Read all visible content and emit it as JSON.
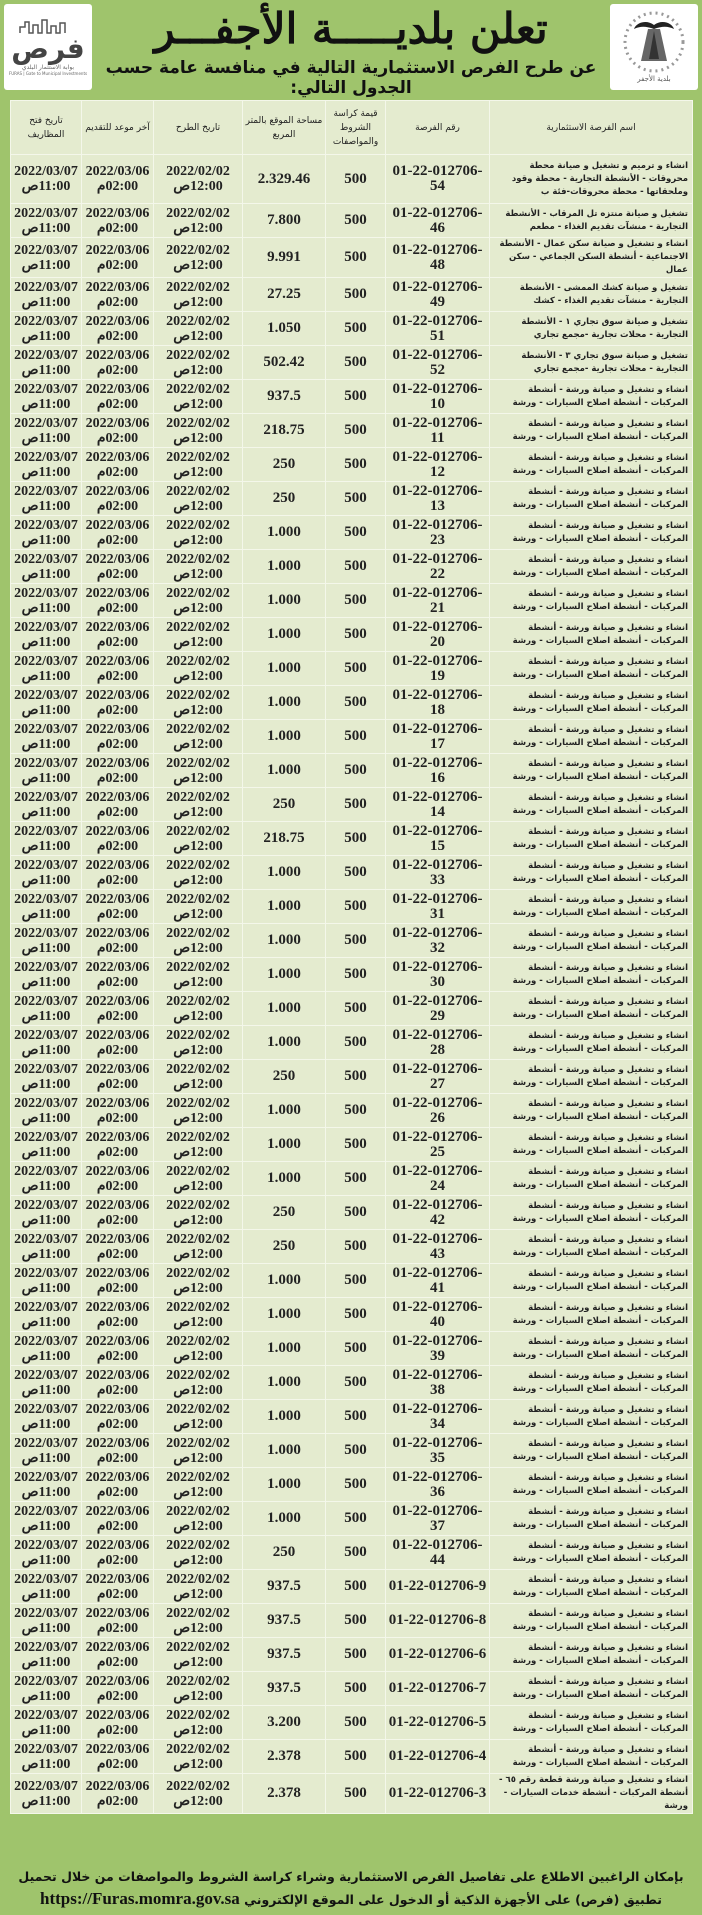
{
  "header": {
    "title": "تعلن بلديـــــة الأجفـــر",
    "subtitle": "عن طرح الفرص الاستثمارية التالية في منافسة عامة حسب الجدول التالي:",
    "furas_logo": {
      "word": "فرص",
      "tagline": "بوابة الاستثمار البلدي",
      "tagline_en": "FURAS | Gate to Municipal Investments"
    },
    "municipality_logo": {
      "text": "بلدية الأجفر"
    }
  },
  "colors": {
    "background": "#9fc46c",
    "cell": "#e4ebcf"
  },
  "table": {
    "headers": [
      "اسم الفرصة الاستثمارية",
      "رقم الفرصة",
      "قيمة كراسة الشروط والمواصفات",
      "مساحة الموقع بالمتر المربع",
      "تاريخ الطرح",
      "آخر موعد للتقديم",
      "تاريخ فتح المظاريف"
    ],
    "offer_date": "2022/02/02\n12:00ص",
    "deadline": "2022/03/06\n02:00م",
    "opening": "2022/03/07\n11:00ص",
    "fee": "500",
    "rows": [
      {
        "name": "انشاء و ترميم و تشغيل و صيانة محطة محروقات - الأنشطة التجارية - محطة وقود وملحقاتها - محطة محروقات-فئة ب",
        "id": "01-22-012706-54",
        "area": "2.329.46"
      },
      {
        "name": "تشغيل و صيانة منتزه تل المرقاب - الأنشطة التجارية - منشآت تقديم الغذاء - مطعم",
        "id": "01-22-012706-46",
        "area": "7.800"
      },
      {
        "name": "انشاء و تشغيل و صيانة سكن عمال - الأنشطة الاجتماعية - أنشطة السكن الجماعي - سكن عمال",
        "id": "01-22-012706-48",
        "area": "9.991"
      },
      {
        "name": "تشغيل و صيانة كشك الممشى - الأنشطة التجارية - منشآت تقديم الغذاء - كشك",
        "id": "01-22-012706-49",
        "area": "27.25"
      },
      {
        "name": "تشغيل و صيانة سوق تجاري ١ - الأنشطة التجارية - محلات تجارية -مجمع تجاري",
        "id": "01-22-012706-51",
        "area": "1.050"
      },
      {
        "name": "تشغيل و صيانة سوق تجاري ٣ - الأنشطة التجارية - محلات تجارية -مجمع تجاري",
        "id": "01-22-012706-52",
        "area": "502.42"
      },
      {
        "name": "انشاء و تشغيل و صيانة ورشة - أنشطة المركبات - أنشطة اصلاح السيارات - ورشة",
        "id": "01-22-012706-10",
        "area": "937.5"
      },
      {
        "name": "انشاء و تشغيل و صيانة ورشة - أنشطة المركبات - أنشطة اصلاح السيارات - ورشة",
        "id": "01-22-012706-11",
        "area": "218.75"
      },
      {
        "name": "انشاء و تشغيل و صيانة ورشة - أنشطة المركبات - أنشطة اصلاح السيارات - ورشة",
        "id": "01-22-012706-12",
        "area": "250"
      },
      {
        "name": "انشاء و تشغيل و صيانة ورشة - أنشطة المركبات - أنشطة اصلاح السيارات - ورشة",
        "id": "01-22-012706-13",
        "area": "250"
      },
      {
        "name": "انشاء و تشغيل و صيانة ورشة - أنشطة المركبات - أنشطة اصلاح السيارات - ورشة",
        "id": "01-22-012706-23",
        "area": "1.000"
      },
      {
        "name": "انشاء و تشغيل و صيانة ورشة - أنشطة المركبات - أنشطة اصلاح السيارات - ورشة",
        "id": "01-22-012706-22",
        "area": "1.000"
      },
      {
        "name": "انشاء و تشغيل و صيانة ورشة - أنشطة المركبات - أنشطة اصلاح السيارات - ورشة",
        "id": "01-22-012706-21",
        "area": "1.000"
      },
      {
        "name": "انشاء و تشغيل و صيانة ورشة - أنشطة المركبات - أنشطة اصلاح السيارات - ورشة",
        "id": "01-22-012706-20",
        "area": "1.000"
      },
      {
        "name": "انشاء و تشغيل و صيانة ورشة - أنشطة المركبات - أنشطة اصلاح السيارات - ورشة",
        "id": "01-22-012706-19",
        "area": "1.000"
      },
      {
        "name": "انشاء و تشغيل و صيانة ورشة - أنشطة المركبات - أنشطة اصلاح السيارات - ورشة",
        "id": "01-22-012706-18",
        "area": "1.000"
      },
      {
        "name": "انشاء و تشغيل و صيانة ورشة - أنشطة المركبات - أنشطة اصلاح السيارات - ورشة",
        "id": "01-22-012706-17",
        "area": "1.000"
      },
      {
        "name": "انشاء و تشغيل و صيانة ورشة - أنشطة المركبات - أنشطة اصلاح السيارات - ورشة",
        "id": "01-22-012706-16",
        "area": "1.000"
      },
      {
        "name": "انشاء و تشغيل و صيانة ورشة - أنشطة المركبات - أنشطة اصلاح السيارات - ورشة",
        "id": "01-22-012706-14",
        "area": "250"
      },
      {
        "name": "انشاء و تشغيل و صيانة ورشة - أنشطة المركبات - أنشطة اصلاح السيارات - ورشة",
        "id": "01-22-012706-15",
        "area": "218.75"
      },
      {
        "name": "انشاء و تشغيل و صيانة ورشة - أنشطة المركبات - أنشطة اصلاح السيارات - ورشة",
        "id": "01-22-012706-33",
        "area": "1.000"
      },
      {
        "name": "انشاء و تشغيل و صيانة ورشة - أنشطة المركبات - أنشطة اصلاح السيارات - ورشة",
        "id": "01-22-012706-31",
        "area": "1.000"
      },
      {
        "name": "انشاء و تشغيل و صيانة ورشة - أنشطة المركبات - أنشطة اصلاح السيارات - ورشة",
        "id": "01-22-012706-32",
        "area": "1.000"
      },
      {
        "name": "انشاء و تشغيل و صيانة ورشة - أنشطة المركبات - أنشطة اصلاح السيارات - ورشة",
        "id": "01-22-012706-30",
        "area": "1.000"
      },
      {
        "name": "انشاء و تشغيل و صيانة ورشة - أنشطة المركبات - أنشطة اصلاح السيارات - ورشة",
        "id": "01-22-012706-29",
        "area": "1.000"
      },
      {
        "name": "انشاء و تشغيل و صيانة ورشة - أنشطة المركبات - أنشطة اصلاح السيارات - ورشة",
        "id": "01-22-012706-28",
        "area": "1.000"
      },
      {
        "name": "انشاء و تشغيل و صيانة ورشة - أنشطة المركبات - أنشطة اصلاح السيارات - ورشة",
        "id": "01-22-012706-27",
        "area": "250"
      },
      {
        "name": "انشاء و تشغيل و صيانة ورشة - أنشطة المركبات - أنشطة اصلاح السيارات - ورشة",
        "id": "01-22-012706-26",
        "area": "1.000"
      },
      {
        "name": "انشاء و تشغيل و صيانة ورشة - أنشطة المركبات - أنشطة اصلاح السيارات - ورشة",
        "id": "01-22-012706-25",
        "area": "1.000"
      },
      {
        "name": "انشاء و تشغيل و صيانة ورشة - أنشطة المركبات - أنشطة اصلاح السيارات - ورشة",
        "id": "01-22-012706-24",
        "area": "1.000"
      },
      {
        "name": "انشاء و تشغيل و صيانة ورشة - أنشطة المركبات - أنشطة اصلاح السيارات - ورشة",
        "id": "01-22-012706-42",
        "area": "250"
      },
      {
        "name": "انشاء و تشغيل و صيانة ورشة - أنشطة المركبات - أنشطة اصلاح السيارات - ورشة",
        "id": "01-22-012706-43",
        "area": "250"
      },
      {
        "name": "انشاء و تشغيل و صيانة ورشة - أنشطة المركبات - أنشطة اصلاح السيارات - ورشة",
        "id": "01-22-012706-41",
        "area": "1.000"
      },
      {
        "name": "انشاء و تشغيل و صيانة ورشة - أنشطة المركبات - أنشطة اصلاح السيارات - ورشة",
        "id": "01-22-012706-40",
        "area": "1.000"
      },
      {
        "name": "انشاء و تشغيل و صيانة ورشة - أنشطة المركبات - أنشطة اصلاح السيارات - ورشة",
        "id": "01-22-012706-39",
        "area": "1.000"
      },
      {
        "name": "انشاء و تشغيل و صيانة ورشة - أنشطة المركبات - أنشطة اصلاح السيارات - ورشة",
        "id": "01-22-012706-38",
        "area": "1.000"
      },
      {
        "name": "انشاء و تشغيل و صيانة ورشة - أنشطة المركبات - أنشطة اصلاح السيارات - ورشة",
        "id": "01-22-012706-34",
        "area": "1.000"
      },
      {
        "name": "انشاء و تشغيل و صيانة ورشة - أنشطة المركبات - أنشطة اصلاح السيارات - ورشة",
        "id": "01-22-012706-35",
        "area": "1.000"
      },
      {
        "name": "انشاء و تشغيل و صيانة ورشة - أنشطة المركبات - أنشطة اصلاح السيارات - ورشة",
        "id": "01-22-012706-36",
        "area": "1.000"
      },
      {
        "name": "انشاء و تشغيل و صيانة ورشة - أنشطة المركبات - أنشطة اصلاح السيارات - ورشة",
        "id": "01-22-012706-37",
        "area": "1.000"
      },
      {
        "name": "انشاء و تشغيل و صيانة ورشة - أنشطة المركبات - أنشطة اصلاح السيارات - ورشة",
        "id": "01-22-012706-44",
        "area": "250"
      },
      {
        "name": "انشاء و تشغيل و صيانة ورشة - أنشطة المركبات - أنشطة اصلاح السيارات - ورشة",
        "id": "01-22-012706-9",
        "area": "937.5"
      },
      {
        "name": "انشاء و تشغيل و صيانة ورشة - أنشطة المركبات - أنشطة اصلاح السيارات - ورشة",
        "id": "01-22-012706-8",
        "area": "937.5"
      },
      {
        "name": "انشاء و تشغيل و صيانة ورشة - أنشطة المركبات - أنشطة اصلاح السيارات - ورشة",
        "id": "01-22-012706-6",
        "area": "937.5"
      },
      {
        "name": "انشاء و تشغيل و صيانة ورشة - أنشطة المركبات - أنشطة اصلاح السيارات - ورشة",
        "id": "01-22-012706-7",
        "area": "937.5"
      },
      {
        "name": "انشاء و تشغيل و صيانة ورشة - أنشطة المركبات - أنشطة اصلاح السيارات - ورشة",
        "id": "01-22-012706-5",
        "area": "3.200"
      },
      {
        "name": "انشاء و تشغيل و صيانة ورشة - أنشطة المركبات - أنشطة اصلاح السيارات - ورشة",
        "id": "01-22-012706-4",
        "area": "2.378"
      },
      {
        "name": "انشاء و تشغيل و صيانة ورشة قطعة رقم ٦٥ - أنشطة المركبات - أنشطة خدمات السيارات - ورشة",
        "id": "01-22-012706-3",
        "area": "2.378"
      }
    ]
  },
  "footer": {
    "line1": "بإمكان الراغبين الاطلاع على تفاصيل الفرص الاستثمارية وشراء كراسة الشروط والمواصفات من خلال تحميل",
    "line2": "تطبيق (فرص) على الأجهزة الذكية أو الدخول على الموقع الإلكتروني",
    "url": "https://Furas.momra.gov.sa"
  }
}
